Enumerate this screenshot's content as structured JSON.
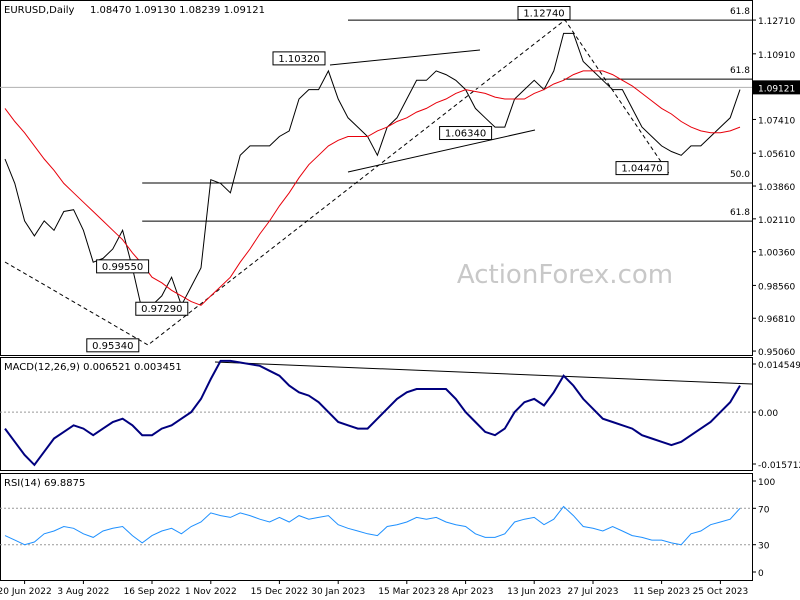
{
  "chart_data": [
    {
      "type": "line",
      "title": "EURUSD,Daily",
      "subtitle": "1.08470 1.09130 1.08239 1.09121",
      "ylim": [
        0.9485,
        1.1378
      ],
      "yticks": [
        {
          "value": 0.9506,
          "label": "0.95060"
        },
        {
          "value": 0.9681,
          "label": "0.96810"
        },
        {
          "value": 0.9856,
          "label": "0.98560"
        },
        {
          "value": 1.0036,
          "label": "1.00360"
        },
        {
          "value": 1.0211,
          "label": "1.02110"
        },
        {
          "value": 1.0386,
          "label": "1.03860"
        },
        {
          "value": 1.0561,
          "label": "1.05610"
        },
        {
          "value": 1.0741,
          "label": "1.07410"
        },
        {
          "value": 1.0916,
          "label": "1.09160"
        },
        {
          "value": 1.1091,
          "label": "1.10910"
        },
        {
          "value": 1.1271,
          "label": "1.12710"
        }
      ],
      "last": {
        "value": 1.09121,
        "label": "1.09121"
      },
      "watermark": "ActionForex.com",
      "series": [
        {
          "color": "#000000",
          "values": [
            1.053,
            1.04,
            1.02,
            1.012,
            1.02,
            1.015,
            1.025,
            1.026,
            1.015,
            0.998,
            1.0,
            1.005,
            1.015,
            0.995,
            0.972,
            0.975,
            0.98,
            0.99,
            0.975,
            0.985,
            0.995,
            1.042,
            1.04,
            1.035,
            1.055,
            1.06,
            1.06,
            1.06,
            1.065,
            1.068,
            1.085,
            1.09,
            1.09,
            1.1,
            1.085,
            1.075,
            1.07,
            1.065,
            1.055,
            1.07,
            1.075,
            1.085,
            1.095,
            1.095,
            1.1,
            1.098,
            1.095,
            1.09,
            1.08,
            1.075,
            1.07,
            1.07,
            1.085,
            1.09,
            1.095,
            1.09,
            1.1,
            1.12,
            1.12,
            1.105,
            1.1,
            1.095,
            1.09,
            1.09,
            1.08,
            1.07,
            1.065,
            1.06,
            1.057,
            1.055,
            1.06,
            1.06,
            1.065,
            1.07,
            1.075,
            1.09
          ]
        },
        {
          "color": "#e8000b",
          "values": [
            1.08,
            1.073,
            1.067,
            1.06,
            1.053,
            1.047,
            1.04,
            1.035,
            1.03,
            1.025,
            1.02,
            1.015,
            1.01,
            1.003,
            0.997,
            0.99,
            0.987,
            0.983,
            0.98,
            0.977,
            0.975,
            0.98,
            0.985,
            0.99,
            0.998,
            1.005,
            1.013,
            1.02,
            1.028,
            1.035,
            1.043,
            1.05,
            1.055,
            1.06,
            1.063,
            1.065,
            1.065,
            1.065,
            1.068,
            1.07,
            1.073,
            1.075,
            1.078,
            1.08,
            1.083,
            1.085,
            1.088,
            1.09,
            1.089,
            1.088,
            1.086,
            1.085,
            1.085,
            1.085,
            1.088,
            1.09,
            1.093,
            1.095,
            1.098,
            1.1,
            1.1,
            1.1,
            1.098,
            1.095,
            1.092,
            1.088,
            1.084,
            1.08,
            1.077,
            1.073,
            1.07,
            1.068,
            1.067,
            1.067,
            1.068,
            1.07
          ]
        }
      ],
      "annotations": [
        {
          "x": 55,
          "value": 1.1274,
          "label": "1.12740"
        },
        {
          "x": 30,
          "value": 1.1032,
          "label": "1.10320"
        },
        {
          "x": 47,
          "value": 1.0634,
          "label": "1.06340"
        },
        {
          "x": 65,
          "value": 1.0447,
          "label": "1.04470"
        },
        {
          "x": 12,
          "value": 0.9955,
          "label": "0.99550"
        },
        {
          "x": 16,
          "value": 0.9729,
          "label": "0.97290"
        },
        {
          "x": 11,
          "value": 0.9534,
          "label": "0.95340"
        }
      ],
      "levels": [
        {
          "x": 35,
          "value": 1.1271,
          "label": "61.8"
        },
        {
          "x": 57,
          "value": 1.0956,
          "label": "61.8"
        },
        {
          "x": 14,
          "value": 1.0402,
          "label": "50.0"
        },
        {
          "x": 14,
          "value": 1.0199,
          "label": "61.8"
        }
      ]
    },
    {
      "type": "line",
      "title": "MACD(12,26,9) 0.006521 0.003451",
      "ylim": [
        -0.01753,
        0.01667
      ],
      "yticks": [
        0.014549,
        {
          "value": 0,
          "label": "0.00"
        },
        -0.015712
      ],
      "levels": [
        0
      ],
      "series": [
        {
          "color": "#00007f",
          "values": [
            -0.005,
            -0.009,
            -0.013,
            -0.016,
            -0.012,
            -0.008,
            -0.006,
            -0.004,
            -0.005,
            -0.007,
            -0.005,
            -0.003,
            -0.002,
            -0.004,
            -0.007,
            -0.007,
            -0.005,
            -0.004,
            -0.002,
            0.0,
            0.004,
            0.01,
            0.0155,
            0.0155,
            0.015,
            0.0145,
            0.014,
            0.0125,
            0.011,
            0.008,
            0.006,
            0.005,
            0.003,
            0.0,
            -0.003,
            -0.004,
            -0.005,
            -0.005,
            -0.002,
            0.001,
            0.004,
            0.006,
            0.007,
            0.007,
            0.007,
            0.007,
            0.004,
            0.0,
            -0.003,
            -0.006,
            -0.007,
            -0.005,
            0.0,
            0.003,
            0.004,
            0.002,
            0.006,
            0.011,
            0.008,
            0.004,
            0.001,
            -0.002,
            -0.003,
            -0.004,
            -0.005,
            -0.007,
            -0.008,
            -0.009,
            -0.01,
            -0.009,
            -0.007,
            -0.005,
            -0.003,
            0.0,
            0.003,
            0.008
          ]
        }
      ]
    },
    {
      "type": "line",
      "title": "RSI(14) 69.8875",
      "ylim": [
        -8.8,
        108.8
      ],
      "yticks": [
        100,
        70,
        30,
        0
      ],
      "levels": [
        70,
        30
      ],
      "categories": [
        null,
        null,
        "20 Jun 2022",
        null,
        null,
        null,
        null,
        null,
        "3 Aug 2022",
        null,
        null,
        null,
        null,
        null,
        null,
        "16 Sep 2022",
        null,
        null,
        null,
        null,
        null,
        "1 Nov 2022",
        null,
        null,
        null,
        null,
        null,
        null,
        "15 Dec 2022",
        null,
        null,
        null,
        null,
        null,
        "30 Jan 2023",
        null,
        null,
        null,
        null,
        null,
        null,
        "15 Mar 2023",
        null,
        null,
        null,
        null,
        null,
        "28 Apr 2023",
        null,
        null,
        null,
        null,
        null,
        null,
        "13 Jun 2023",
        null,
        null,
        null,
        null,
        null,
        "27 Jul 2023",
        null,
        null,
        null,
        null,
        null,
        null,
        "11 Sep 2023",
        null,
        null,
        null,
        null,
        null,
        "25 Oct 2023",
        null,
        null
      ],
      "series": [
        {
          "color": "#1e90ff",
          "values": [
            40,
            35,
            30,
            33,
            42,
            45,
            50,
            48,
            42,
            38,
            45,
            48,
            50,
            40,
            32,
            40,
            45,
            48,
            42,
            50,
            55,
            65,
            62,
            60,
            65,
            62,
            58,
            55,
            60,
            55,
            62,
            58,
            60,
            62,
            52,
            48,
            45,
            42,
            40,
            50,
            52,
            55,
            60,
            58,
            60,
            55,
            52,
            50,
            42,
            38,
            38,
            42,
            55,
            58,
            60,
            52,
            58,
            72,
            62,
            50,
            48,
            45,
            50,
            45,
            40,
            38,
            35,
            35,
            32,
            30,
            42,
            45,
            52,
            55,
            58,
            70
          ]
        }
      ]
    }
  ]
}
